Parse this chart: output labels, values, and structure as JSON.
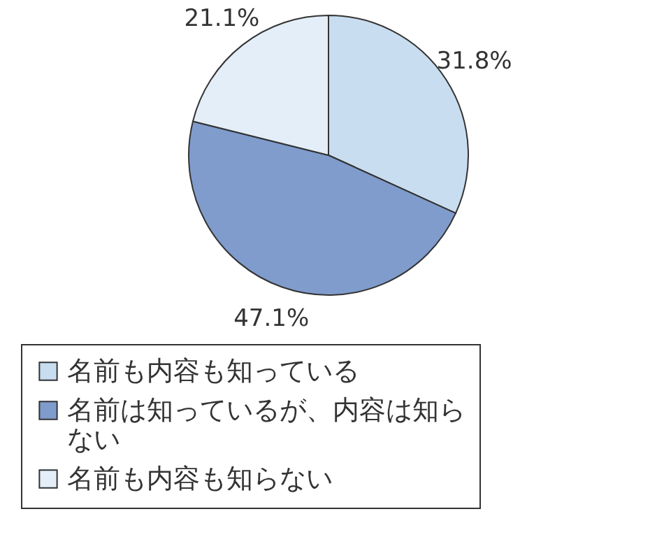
{
  "chart_data": {
    "type": "pie",
    "categories": [
      "名前も内容も知っている",
      "名前は知っているが、内容は知らない",
      "名前も内容も知らない"
    ],
    "values": [
      31.8,
      47.1,
      21.1
    ],
    "value_labels": [
      "31.8%",
      "47.1%",
      "21.1%"
    ],
    "colors": [
      "#c9ddf0",
      "#7f9ccc",
      "#e3eef9"
    ],
    "legend": "bottom"
  }
}
